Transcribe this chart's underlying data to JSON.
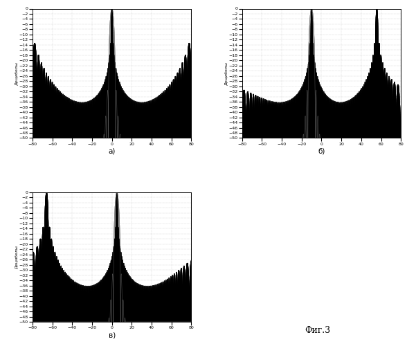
{
  "title": "Фиг.3",
  "ylabel": "Децибелы",
  "xlim": [
    -80,
    80
  ],
  "ylim": [
    -50,
    0
  ],
  "yticks": [
    0,
    -2,
    -4,
    -6,
    -8,
    -10,
    -12,
    -14,
    -16,
    -18,
    -20,
    -22,
    -24,
    -26,
    -28,
    -30,
    -32,
    -34,
    -36,
    -38,
    -40,
    -42,
    -44,
    -46,
    -48,
    -50
  ],
  "xticks": [
    -80,
    -60,
    -40,
    -20,
    0,
    20,
    40,
    60,
    80
  ],
  "label_a": "а)",
  "label_b": "б)",
  "label_v": "в)",
  "N": 64,
  "scan_a_deg": 0,
  "scan_b_deg": -15,
  "scan_v_deg": 5,
  "background_color": "#ffffff",
  "line_color": "#000000",
  "grid_color": "#888888",
  "fig_label": "Фиг.3"
}
